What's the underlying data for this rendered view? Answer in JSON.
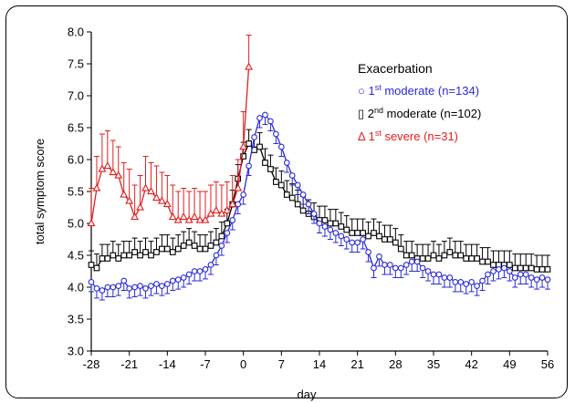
{
  "chart_data": {
    "type": "line",
    "xlabel": "day",
    "ylabel": "total symptom score",
    "xlim": [
      -28,
      56
    ],
    "ylim": [
      3.0,
      8.0
    ],
    "x_ticks": [
      "-28",
      "-21",
      "-14",
      "-7",
      "0",
      "7",
      "14",
      "21",
      "28",
      "35",
      "42",
      "49",
      "56"
    ],
    "y_ticks": [
      "3.0",
      "3.5",
      "4.0",
      "4.5",
      "5.0",
      "5.5",
      "6.0",
      "6.5",
      "7.0",
      "7.5",
      "8.0"
    ],
    "grid": false,
    "legend": {
      "placement": "top-right",
      "title": "Exacerbation",
      "entries": [
        {
          "marker": "○",
          "num": "1",
          "sup": "st",
          "rest": " moderate (n=134)",
          "color": "#2a2ad8"
        },
        {
          "marker": "▯",
          "num": "2",
          "sup": "nd",
          "rest": " moderate (n=102)",
          "color": "#000000"
        },
        {
          "marker": "Δ",
          "num": "1",
          "sup": "st",
          "rest": "  severe     (n=31)",
          "color": "#e02020"
        }
      ]
    },
    "series": [
      {
        "color": "#2a2ad8",
        "marker": "circle",
        "error_dir": "down",
        "error": 0.15,
        "x": [
          -28,
          -27,
          -26,
          -25,
          -24,
          -23,
          -22,
          -21,
          -20,
          -19,
          -18,
          -17,
          -16,
          -15,
          -14,
          -13,
          -12,
          -11,
          -10,
          -9,
          -8,
          -7,
          -6,
          -5,
          -4,
          -3,
          -2,
          -1,
          0,
          1,
          2,
          3,
          4,
          5,
          6,
          7,
          8,
          9,
          10,
          11,
          12,
          13,
          14,
          15,
          16,
          17,
          18,
          19,
          20,
          21,
          22,
          23,
          24,
          25,
          26,
          27,
          28,
          29,
          30,
          31,
          32,
          33,
          34,
          35,
          36,
          37,
          38,
          39,
          40,
          41,
          42,
          43,
          44,
          45,
          46,
          47,
          48,
          49,
          50,
          51,
          52,
          53,
          54,
          55,
          56
        ],
        "y": [
          4.08,
          3.98,
          3.95,
          4.0,
          4.0,
          4.02,
          4.1,
          3.98,
          4.0,
          4.02,
          3.98,
          4.02,
          4.05,
          4.02,
          4.05,
          4.1,
          4.12,
          4.15,
          4.2,
          4.25,
          4.25,
          4.28,
          4.35,
          4.5,
          4.65,
          4.85,
          5.05,
          5.3,
          5.45,
          5.9,
          6.35,
          6.65,
          6.7,
          6.6,
          6.4,
          6.2,
          5.95,
          5.75,
          5.6,
          5.45,
          5.3,
          5.15,
          5.0,
          4.95,
          4.9,
          4.85,
          4.8,
          4.75,
          4.7,
          4.7,
          4.75,
          4.55,
          4.3,
          4.48,
          4.35,
          4.35,
          4.3,
          4.3,
          4.35,
          4.4,
          4.4,
          4.3,
          4.25,
          4.2,
          4.2,
          4.15,
          4.15,
          4.08,
          4.08,
          4.05,
          4.08,
          4.02,
          4.1,
          4.2,
          4.25,
          4.28,
          4.3,
          4.25,
          4.15,
          4.2,
          4.2,
          4.15,
          4.12,
          4.15,
          4.12
        ]
      },
      {
        "color": "#000000",
        "marker": "square",
        "error_dir": "up",
        "error": 0.22,
        "x": [
          -28,
          -27,
          -26,
          -25,
          -24,
          -23,
          -22,
          -21,
          -20,
          -19,
          -18,
          -17,
          -16,
          -15,
          -14,
          -13,
          -12,
          -11,
          -10,
          -9,
          -8,
          -7,
          -6,
          -5,
          -4,
          -3,
          -2,
          -1,
          0,
          1,
          2,
          3,
          4,
          5,
          6,
          7,
          8,
          9,
          10,
          11,
          12,
          13,
          14,
          15,
          16,
          17,
          18,
          19,
          20,
          21,
          22,
          23,
          24,
          25,
          26,
          27,
          28,
          29,
          30,
          31,
          32,
          33,
          34,
          35,
          36,
          37,
          38,
          39,
          40,
          41,
          42,
          43,
          44,
          45,
          46,
          47,
          48,
          49,
          50,
          51,
          52,
          53,
          54,
          55,
          56
        ],
        "y": [
          4.35,
          4.3,
          4.45,
          4.45,
          4.5,
          4.45,
          4.5,
          4.5,
          4.55,
          4.5,
          4.55,
          4.5,
          4.55,
          4.6,
          4.6,
          4.55,
          4.6,
          4.65,
          4.7,
          4.65,
          4.6,
          4.6,
          4.65,
          4.7,
          4.8,
          5.0,
          5.3,
          5.7,
          6.05,
          6.25,
          6.15,
          6.2,
          5.95,
          5.85,
          5.65,
          5.6,
          5.45,
          5.4,
          5.3,
          5.2,
          5.15,
          5.1,
          5.05,
          5.05,
          5.0,
          5.0,
          4.95,
          4.9,
          4.85,
          4.85,
          4.85,
          4.8,
          4.85,
          4.8,
          4.75,
          4.75,
          4.7,
          4.6,
          4.5,
          4.5,
          4.45,
          4.45,
          4.45,
          4.5,
          4.45,
          4.5,
          4.55,
          4.5,
          4.5,
          4.45,
          4.45,
          4.45,
          4.4,
          4.4,
          4.35,
          4.35,
          4.35,
          4.35,
          4.3,
          4.3,
          4.3,
          4.3,
          4.28,
          4.28,
          4.28
        ]
      },
      {
        "color": "#e02020",
        "marker": "triangle",
        "error_dir": "up",
        "error": 0.55,
        "x": [
          -28,
          -27,
          -26,
          -25,
          -24,
          -23,
          -22,
          -21,
          -20,
          -19,
          -18,
          -17,
          -16,
          -15,
          -14,
          -13,
          -12,
          -11,
          -10,
          -9,
          -8,
          -7,
          -6,
          -5,
          -4,
          -3,
          -2,
          -1,
          0,
          1
        ],
        "y": [
          5.0,
          5.55,
          5.85,
          5.9,
          5.8,
          5.75,
          5.45,
          5.35,
          5.1,
          5.25,
          5.55,
          5.5,
          5.4,
          5.35,
          5.3,
          5.1,
          5.05,
          5.1,
          5.05,
          5.1,
          5.05,
          5.05,
          5.15,
          5.2,
          5.15,
          5.2,
          5.3,
          5.55,
          6.2,
          7.45
        ],
        "error_up": [
          0.55,
          0.5,
          0.55,
          0.55,
          0.5,
          0.45,
          0.5,
          0.5,
          0.5,
          0.5,
          0.5,
          0.45,
          0.5,
          0.45,
          0.45,
          0.5,
          0.45,
          0.45,
          0.45,
          0.45,
          0.45,
          0.45,
          0.45,
          0.45,
          0.45,
          0.45,
          0.45,
          0.45,
          0.55,
          0.5
        ]
      }
    ]
  }
}
